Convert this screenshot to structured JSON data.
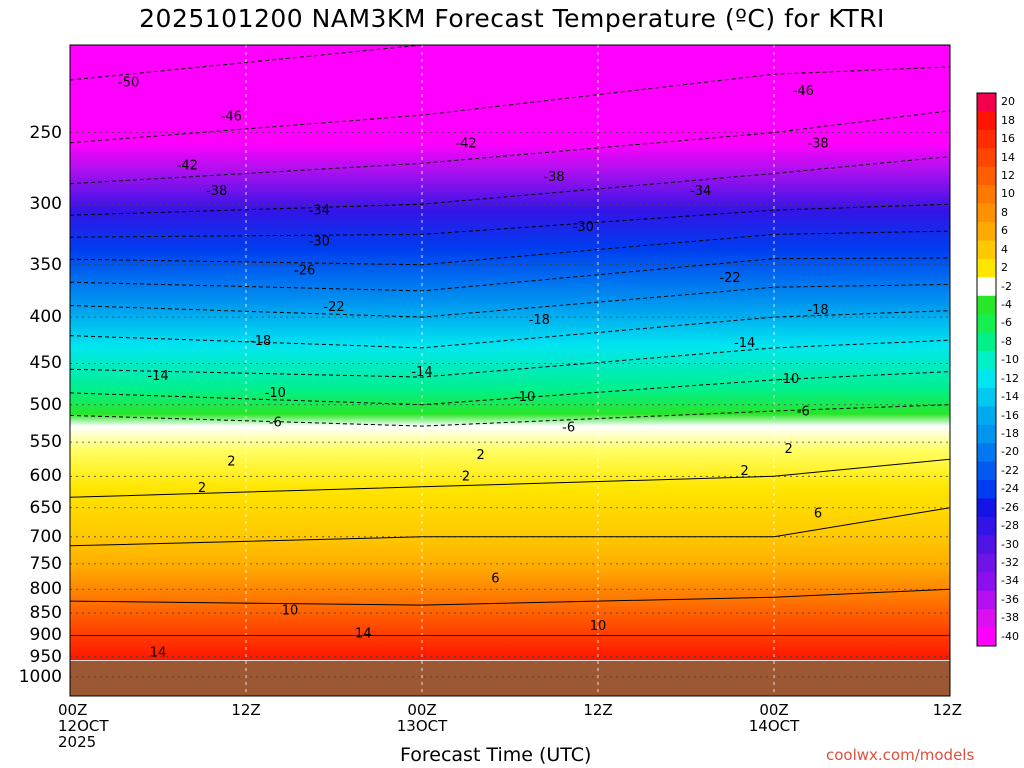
{
  "title": "2025101200 NAM3KM Forecast Temperature (ºC) for KTRI",
  "credit": "coolwx.com/models",
  "chart_data": {
    "type": "heatmap",
    "title": "2025101200 NAM3KM Forecast Temperature (ºC) for KTRI",
    "xlabel": "Forecast Time (UTC)",
    "ylabel": "",
    "y_scale": "log-pressure",
    "y_inverted": true,
    "ylim": [
      1050,
      200
    ],
    "xlim": [
      0,
      60
    ],
    "grid": true,
    "x_ticks": [
      {
        "hour": 0,
        "lines": [
          "00Z",
          "12OCT",
          "2025"
        ]
      },
      {
        "hour": 12,
        "lines": [
          "12Z"
        ]
      },
      {
        "hour": 24,
        "lines": [
          "00Z",
          "13OCT"
        ]
      },
      {
        "hour": 36,
        "lines": [
          "12Z"
        ]
      },
      {
        "hour": 48,
        "lines": [
          "00Z",
          "14OCT"
        ]
      },
      {
        "hour": 60,
        "lines": [
          "12Z"
        ]
      }
    ],
    "y_ticks": [
      250,
      300,
      350,
      400,
      450,
      500,
      550,
      600,
      650,
      700,
      750,
      800,
      850,
      900,
      950,
      1000
    ],
    "ground_level_hpa": 960,
    "ground_color": "#9c5733",
    "colorbar": {
      "labels": [
        "20",
        "18",
        "16",
        "14",
        "12",
        "10",
        "8",
        "6",
        "4",
        "2",
        "-2",
        "-4",
        "-6",
        "-8",
        "-10",
        "-12",
        "-14",
        "-16",
        "-18",
        "-20",
        "-22",
        "-24",
        "-26",
        "-28",
        "-30",
        "-32",
        "-34",
        "-36",
        "-38",
        "-40"
      ],
      "colors": [
        "#f2004e",
        "#ff1400",
        "#ff2d00",
        "#ff4600",
        "#ff5f00",
        "#ff7800",
        "#ff9100",
        "#ffaa00",
        "#ffc800",
        "#ffe600",
        "#ffffff",
        "#28e628",
        "#14f050",
        "#00f08c",
        "#00f0c8",
        "#00e6f0",
        "#00c8f0",
        "#00aaf0",
        "#0096f0",
        "#0078f0",
        "#005af0",
        "#003cf0",
        "#1414e6",
        "#3214e6",
        "#5014e6",
        "#6e14e6",
        "#8c0ff0",
        "#b40ff0",
        "#dc0ff0",
        "#ff00ff"
      ]
    },
    "levels_hpa": [
      200,
      250,
      300,
      350,
      400,
      450,
      500,
      550,
      600,
      650,
      700,
      750,
      800,
      850,
      900,
      950
    ],
    "temperature_profile_c": {
      "hour_0": [
        -52,
        -47,
        -40,
        -29,
        -20,
        -15,
        -8,
        -1,
        0,
        3,
        5,
        8,
        9,
        11,
        14,
        15
      ],
      "hour_24": [
        -50,
        -45,
        -38,
        -30,
        -22,
        -16,
        -10,
        -3,
        1,
        4,
        6,
        7,
        8,
        11,
        14,
        16
      ],
      "hour_48": [
        -48,
        -42,
        -35,
        -25,
        -18,
        -12,
        -7,
        -1,
        2,
        4,
        6,
        7,
        9,
        12,
        14,
        16
      ],
      "hour_60": [
        -48,
        -40,
        -34,
        -25,
        -17,
        -11,
        -6,
        1,
        3,
        6,
        7,
        8,
        10,
        12,
        14,
        16
      ]
    },
    "contours": [
      {
        "label": "-50",
        "x": 4,
        "y": 220
      },
      {
        "label": "-46",
        "x": 11,
        "y": 240
      },
      {
        "label": "-46",
        "x": 50,
        "y": 225
      },
      {
        "label": "-42",
        "x": 8,
        "y": 272
      },
      {
        "label": "-42",
        "x": 27,
        "y": 257
      },
      {
        "label": "-38",
        "x": 10,
        "y": 290
      },
      {
        "label": "-38",
        "x": 33,
        "y": 280
      },
      {
        "label": "-38",
        "x": 51,
        "y": 257
      },
      {
        "label": "-34",
        "x": 17,
        "y": 305
      },
      {
        "label": "-34",
        "x": 43,
        "y": 290
      },
      {
        "label": "-30",
        "x": 17,
        "y": 330
      },
      {
        "label": "-30",
        "x": 35,
        "y": 318
      },
      {
        "label": "-26",
        "x": 16,
        "y": 355
      },
      {
        "label": "-22",
        "x": 18,
        "y": 390
      },
      {
        "label": "-22",
        "x": 45,
        "y": 362
      },
      {
        "label": "-18",
        "x": 13,
        "y": 425
      },
      {
        "label": "-18",
        "x": 32,
        "y": 403
      },
      {
        "label": "-18",
        "x": 51,
        "y": 393
      },
      {
        "label": "-14",
        "x": 6,
        "y": 465
      },
      {
        "label": "-14",
        "x": 24,
        "y": 460
      },
      {
        "label": "-14",
        "x": 46,
        "y": 427
      },
      {
        "label": "-10",
        "x": 14,
        "y": 485
      },
      {
        "label": "-10",
        "x": 31,
        "y": 490
      },
      {
        "label": "-10",
        "x": 49,
        "y": 468
      },
      {
        "label": "-6",
        "x": 14,
        "y": 523
      },
      {
        "label": "-6",
        "x": 34,
        "y": 530
      },
      {
        "label": "-6",
        "x": 50,
        "y": 509
      },
      {
        "label": "2",
        "x": 11,
        "y": 578
      },
      {
        "label": "2",
        "x": 28,
        "y": 568
      },
      {
        "label": "2",
        "x": 49,
        "y": 560
      },
      {
        "label": "2",
        "x": 9,
        "y": 618
      },
      {
        "label": "2",
        "x": 27,
        "y": 600
      },
      {
        "label": "2",
        "x": 46,
        "y": 592
      },
      {
        "label": "6",
        "x": 29,
        "y": 778
      },
      {
        "label": "6",
        "x": 51,
        "y": 660
      },
      {
        "label": "10",
        "x": 15,
        "y": 845
      },
      {
        "label": "10",
        "x": 36,
        "y": 878
      },
      {
        "label": "14",
        "x": 20,
        "y": 895
      },
      {
        "label": "14",
        "x": 6,
        "y": 940
      }
    ]
  }
}
